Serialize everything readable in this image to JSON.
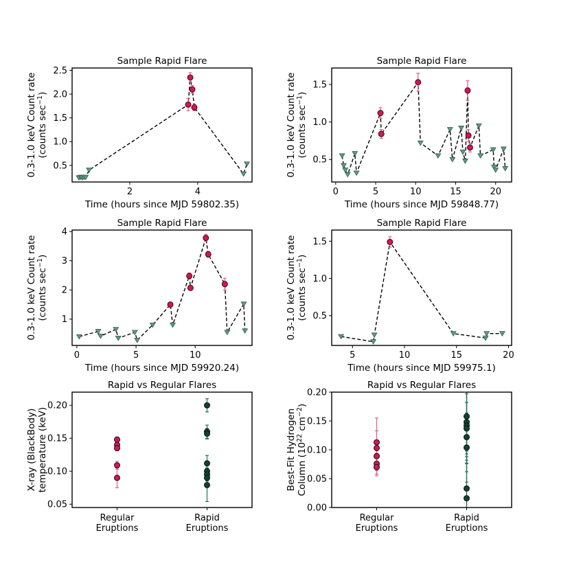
{
  "colors": {
    "detect": "#d6164f",
    "upper": "#5e9b86",
    "rapid": "#0e4434",
    "rapid_err": "#2a6f5a",
    "regular_err": "#e06086"
  },
  "chart_data": [
    {
      "type": "line",
      "title": "Sample Rapid Flare",
      "xlabel": "Time (hours since MJD 59802.35)",
      "ylabel": [
        "0.3-1.0 keV Count rate",
        "(counts sec"
      ],
      "xlim": [
        0.3,
        5.6
      ],
      "ylim": [
        0.15,
        2.55
      ],
      "xticks": [
        2,
        4
      ],
      "yticks": [
        0.5,
        1.0,
        1.5,
        2.0,
        2.5
      ],
      "series": [
        {
          "x": [
            0.5,
            0.55,
            0.6,
            0.65,
            0.7,
            0.8,
            3.72,
            3.78,
            3.84,
            3.9,
            5.35,
            5.45
          ],
          "y": [
            0.24,
            0.25,
            0.24,
            0.25,
            0.25,
            0.4,
            1.78,
            2.35,
            2.1,
            1.72,
            0.32,
            0.53
          ],
          "kind": [
            "u",
            "u",
            "u",
            "u",
            "u",
            "u",
            "d",
            "d",
            "d",
            "d",
            "u",
            "u"
          ],
          "err": [
            0,
            0,
            0,
            0,
            0,
            0,
            0.13,
            0.1,
            0.08,
            0.07,
            0,
            0
          ]
        }
      ]
    },
    {
      "type": "line",
      "title": "Sample Rapid Flare",
      "xlabel": "Time (hours since MJD 59848.77)",
      "ylabel": [
        "0.3-1.0 keV Count rate",
        "(counts sec"
      ],
      "xlim": [
        -0.5,
        22.0
      ],
      "ylim": [
        0.2,
        1.72
      ],
      "xticks": [
        0,
        5,
        10,
        15,
        20
      ],
      "yticks": [
        0.5,
        1.0,
        1.5
      ],
      "series": [
        {
          "x": [
            0.8,
            1.0,
            1.2,
            1.5,
            2.4,
            2.6,
            5.6,
            5.7,
            10.3,
            10.6,
            12.8,
            14.3,
            14.6,
            15.7,
            15.9,
            16.2,
            16.5,
            16.6,
            16.8,
            17.9,
            18.1,
            19.7,
            19.8,
            20.0,
            21.0,
            21.2
          ],
          "y": [
            0.55,
            0.42,
            0.36,
            0.3,
            0.58,
            0.32,
            1.12,
            0.84,
            1.53,
            0.72,
            0.55,
            0.9,
            0.5,
            0.92,
            0.6,
            0.48,
            1.42,
            0.82,
            0.66,
            0.95,
            0.55,
            0.63,
            0.4,
            0.36,
            0.64,
            0.38
          ],
          "kind": [
            "u",
            "u",
            "u",
            "u",
            "u",
            "u",
            "d",
            "d",
            "d",
            "u",
            "u",
            "u",
            "u",
            "u",
            "u",
            "u",
            "d",
            "d",
            "d",
            "u",
            "u",
            "u",
            "u",
            "u",
            "u",
            "u"
          ],
          "err": [
            0,
            0,
            0,
            0,
            0,
            0,
            0.07,
            0.06,
            0.12,
            0,
            0,
            0,
            0,
            0,
            0,
            0,
            0.13,
            0.08,
            0.06,
            0,
            0,
            0,
            0,
            0,
            0,
            0
          ]
        }
      ]
    },
    {
      "type": "line",
      "title": "Sample Rapid Flare",
      "xlabel": "Time (hours since MJD 59920.24)",
      "ylabel": [
        "0.3-1.0 keV Count rate",
        "(counts sec"
      ],
      "xlim": [
        -0.4,
        14.8
      ],
      "ylim": [
        0.1,
        4.05
      ],
      "xticks": [
        0,
        5,
        10
      ],
      "yticks": [
        1,
        2,
        3,
        4
      ],
      "series": [
        {
          "x": [
            0.2,
            1.8,
            2.0,
            3.3,
            3.5,
            4.9,
            5.1,
            6.4,
            7.9,
            8.1,
            9.5,
            9.6,
            10.9,
            11.1,
            12.5,
            12.7,
            14.1,
            14.2
          ],
          "y": [
            0.4,
            0.58,
            0.42,
            0.65,
            0.35,
            0.55,
            0.28,
            0.8,
            1.5,
            0.8,
            2.48,
            2.07,
            3.78,
            3.22,
            2.2,
            0.55,
            1.52,
            0.6
          ],
          "kind": [
            "u",
            "u",
            "u",
            "u",
            "u",
            "u",
            "u",
            "u",
            "d",
            "u",
            "d",
            "d",
            "d",
            "d",
            "d",
            "u",
            "u",
            "u"
          ],
          "err": [
            0,
            0,
            0,
            0,
            0,
            0,
            0,
            0,
            0.08,
            0,
            0.1,
            0.08,
            0.12,
            0.1,
            0.2,
            0,
            0,
            0
          ]
        }
      ]
    },
    {
      "type": "line",
      "title": "Sample Rapid Flare",
      "xlabel": "Time (hours since MJD 59975.1)",
      "ylabel": [
        "0.3-1.0 keV Count rate",
        "(counts sec"
      ],
      "xlim": [
        3.0,
        20.3
      ],
      "ylim": [
        0.1,
        1.65
      ],
      "xticks": [
        5,
        10,
        15,
        20
      ],
      "yticks": [
        0.5,
        1.0,
        1.5
      ],
      "series": [
        {
          "x": [
            3.9,
            7.0,
            7.1,
            8.6,
            14.7,
            17.8,
            17.9,
            19.4
          ],
          "y": [
            0.22,
            0.15,
            0.24,
            1.49,
            0.26,
            0.2,
            0.26,
            0.26
          ],
          "kind": [
            "u",
            "u",
            "u",
            "d",
            "u",
            "u",
            "u",
            "u"
          ],
          "err": [
            0,
            0,
            0,
            0.07,
            0,
            0,
            0,
            0
          ]
        }
      ]
    },
    {
      "type": "scatter",
      "title": "Rapid vs Regular Flares",
      "xlabel": "",
      "ylabel": [
        "X-ray (BlackBody)",
        "temperature (keV)"
      ],
      "ylim": [
        0.045,
        0.22
      ],
      "yticks": [
        0.05,
        0.1,
        0.15,
        0.2
      ],
      "categories": [
        "Regular\nEruptions",
        "Rapid\nEruptions"
      ],
      "series": [
        {
          "name": "Regular Eruptions",
          "cat": 0,
          "values": [
            0.148,
            0.14,
            0.135,
            0.109,
            0.09
          ],
          "err": [
            0.004,
            0.004,
            0.004,
            0.006,
            0.015
          ]
        },
        {
          "name": "Rapid Eruptions",
          "cat": 1,
          "values": [
            0.2,
            0.16,
            0.157,
            0.112,
            0.1,
            0.095,
            0.09,
            0.079
          ],
          "err": [
            0.01,
            0.01,
            0.008,
            0.012,
            0.012,
            0.01,
            0.012,
            0.025
          ]
        }
      ]
    },
    {
      "type": "scatter",
      "title": "Rapid vs Regular Flares",
      "xlabel": "",
      "ylabel": [
        "Best-Fit Hydrogen",
        "Column (10"
      ],
      "ylim": [
        0.0,
        0.2
      ],
      "yticks": [
        0.0,
        0.05,
        0.1,
        0.15,
        0.2
      ],
      "categories": [
        "Regular\nEruptions",
        "Rapid\nEruptions"
      ],
      "series": [
        {
          "name": "Regular Eruptions",
          "cat": 0,
          "values": [
            0.113,
            0.103,
            0.089,
            0.076,
            0.07
          ],
          "err": [
            0.042,
            0.03,
            0.025,
            0.018,
            0.015
          ]
        },
        {
          "name": "Rapid Eruptions",
          "cat": 1,
          "values": [
            0.158,
            0.148,
            0.142,
            0.137,
            0.122,
            0.104,
            0.033,
            0.016
          ],
          "err": [
            0.06,
            0.06,
            0.06,
            0.06,
            0.06,
            0.06,
            0.06,
            0.06
          ]
        }
      ]
    }
  ]
}
